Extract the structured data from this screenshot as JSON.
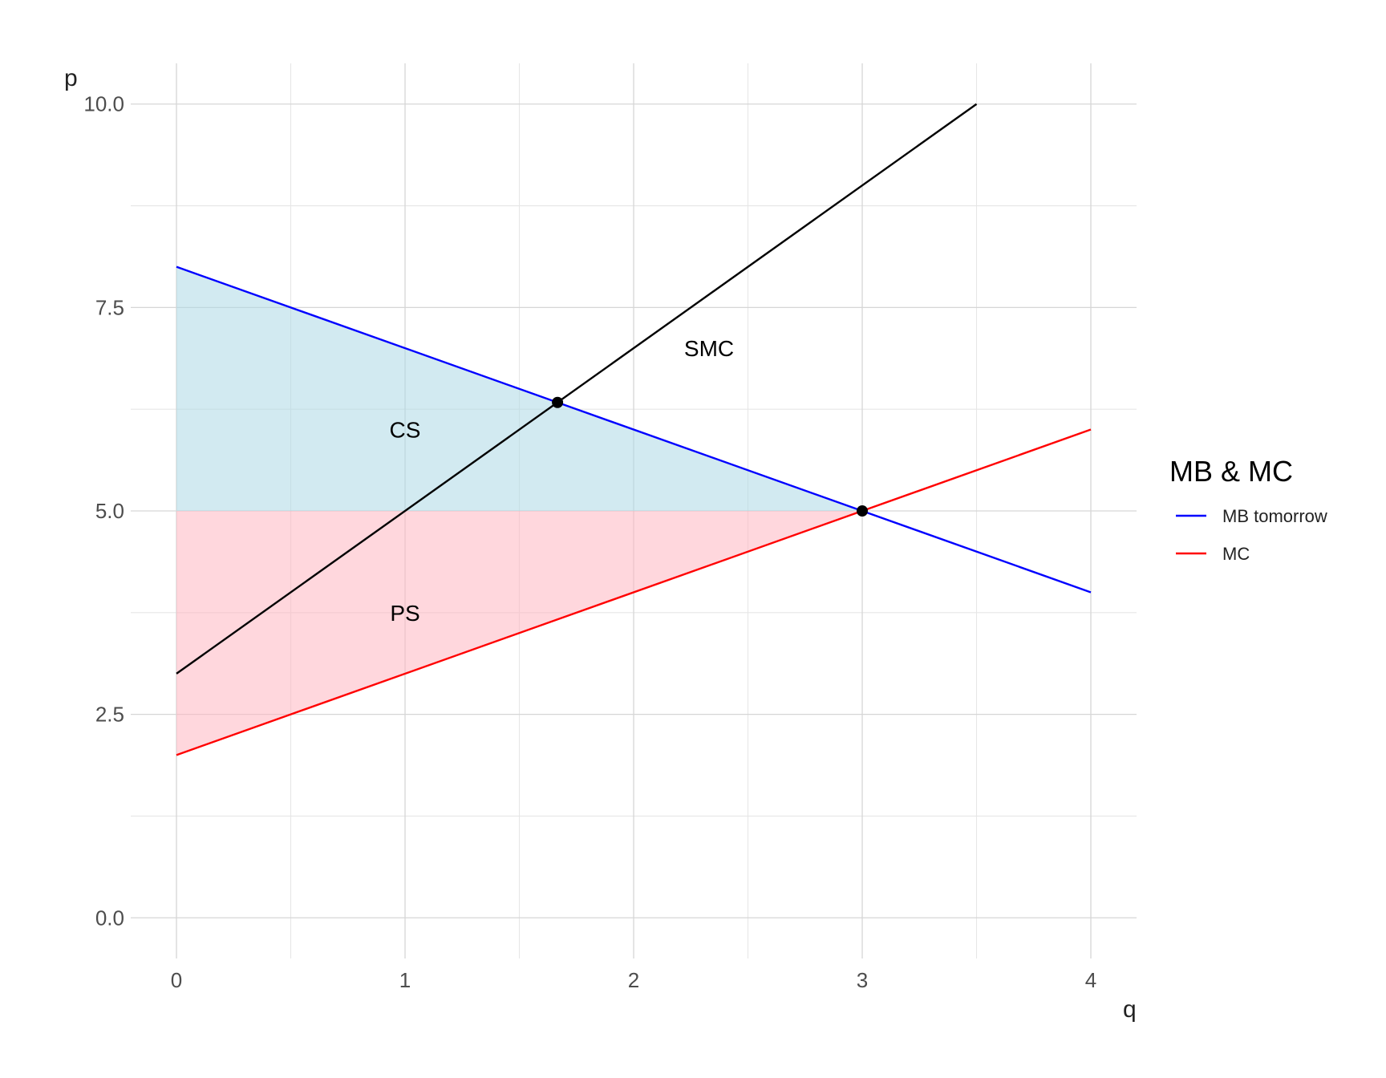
{
  "chart_data": {
    "type": "line",
    "xlabel": "q",
    "ylabel": "p",
    "xlim": [
      -0.2,
      4.2
    ],
    "ylim": [
      -0.5,
      10.5
    ],
    "x_ticks": [
      0,
      1,
      2,
      3,
      4
    ],
    "x_tick_labels": [
      "0",
      "1",
      "2",
      "3",
      "4"
    ],
    "y_ticks": [
      0,
      2.5,
      5,
      7.5,
      10
    ],
    "y_tick_labels": [
      "0.0",
      "2.5",
      "5.0",
      "7.5",
      "10.0"
    ],
    "grid": true,
    "series": [
      {
        "name": "MB tomorrow",
        "color": "#0000ff",
        "x": [
          0,
          4
        ],
        "y": [
          8,
          4
        ]
      },
      {
        "name": "MC",
        "color": "#ff0000",
        "x": [
          0,
          4
        ],
        "y": [
          2,
          6
        ]
      },
      {
        "label": "SMC",
        "color": "#000000",
        "x": [
          0,
          3.5
        ],
        "y": [
          3,
          10
        ]
      }
    ],
    "areas": [
      {
        "label": "CS",
        "color": "#add8e6",
        "opacity": 0.55,
        "polygon": [
          [
            0,
            8
          ],
          [
            3,
            5
          ],
          [
            0,
            5
          ]
        ]
      },
      {
        "label": "PS",
        "color": "#ffb6c1",
        "opacity": 0.55,
        "polygon": [
          [
            0,
            5
          ],
          [
            3,
            5
          ],
          [
            0,
            2
          ]
        ]
      }
    ],
    "points": [
      {
        "x": 1.667,
        "y": 6.333
      },
      {
        "x": 3,
        "y": 5
      }
    ],
    "annotations": [
      {
        "text": "CS",
        "x": 1,
        "y": 6
      },
      {
        "text": "PS",
        "x": 1,
        "y": 3.75
      },
      {
        "text": "SMC",
        "x": 2.33,
        "y": 7
      }
    ],
    "legend": {
      "title": "MB & MC",
      "position": "right",
      "entries": [
        "MB tomorrow",
        "MC"
      ]
    }
  }
}
